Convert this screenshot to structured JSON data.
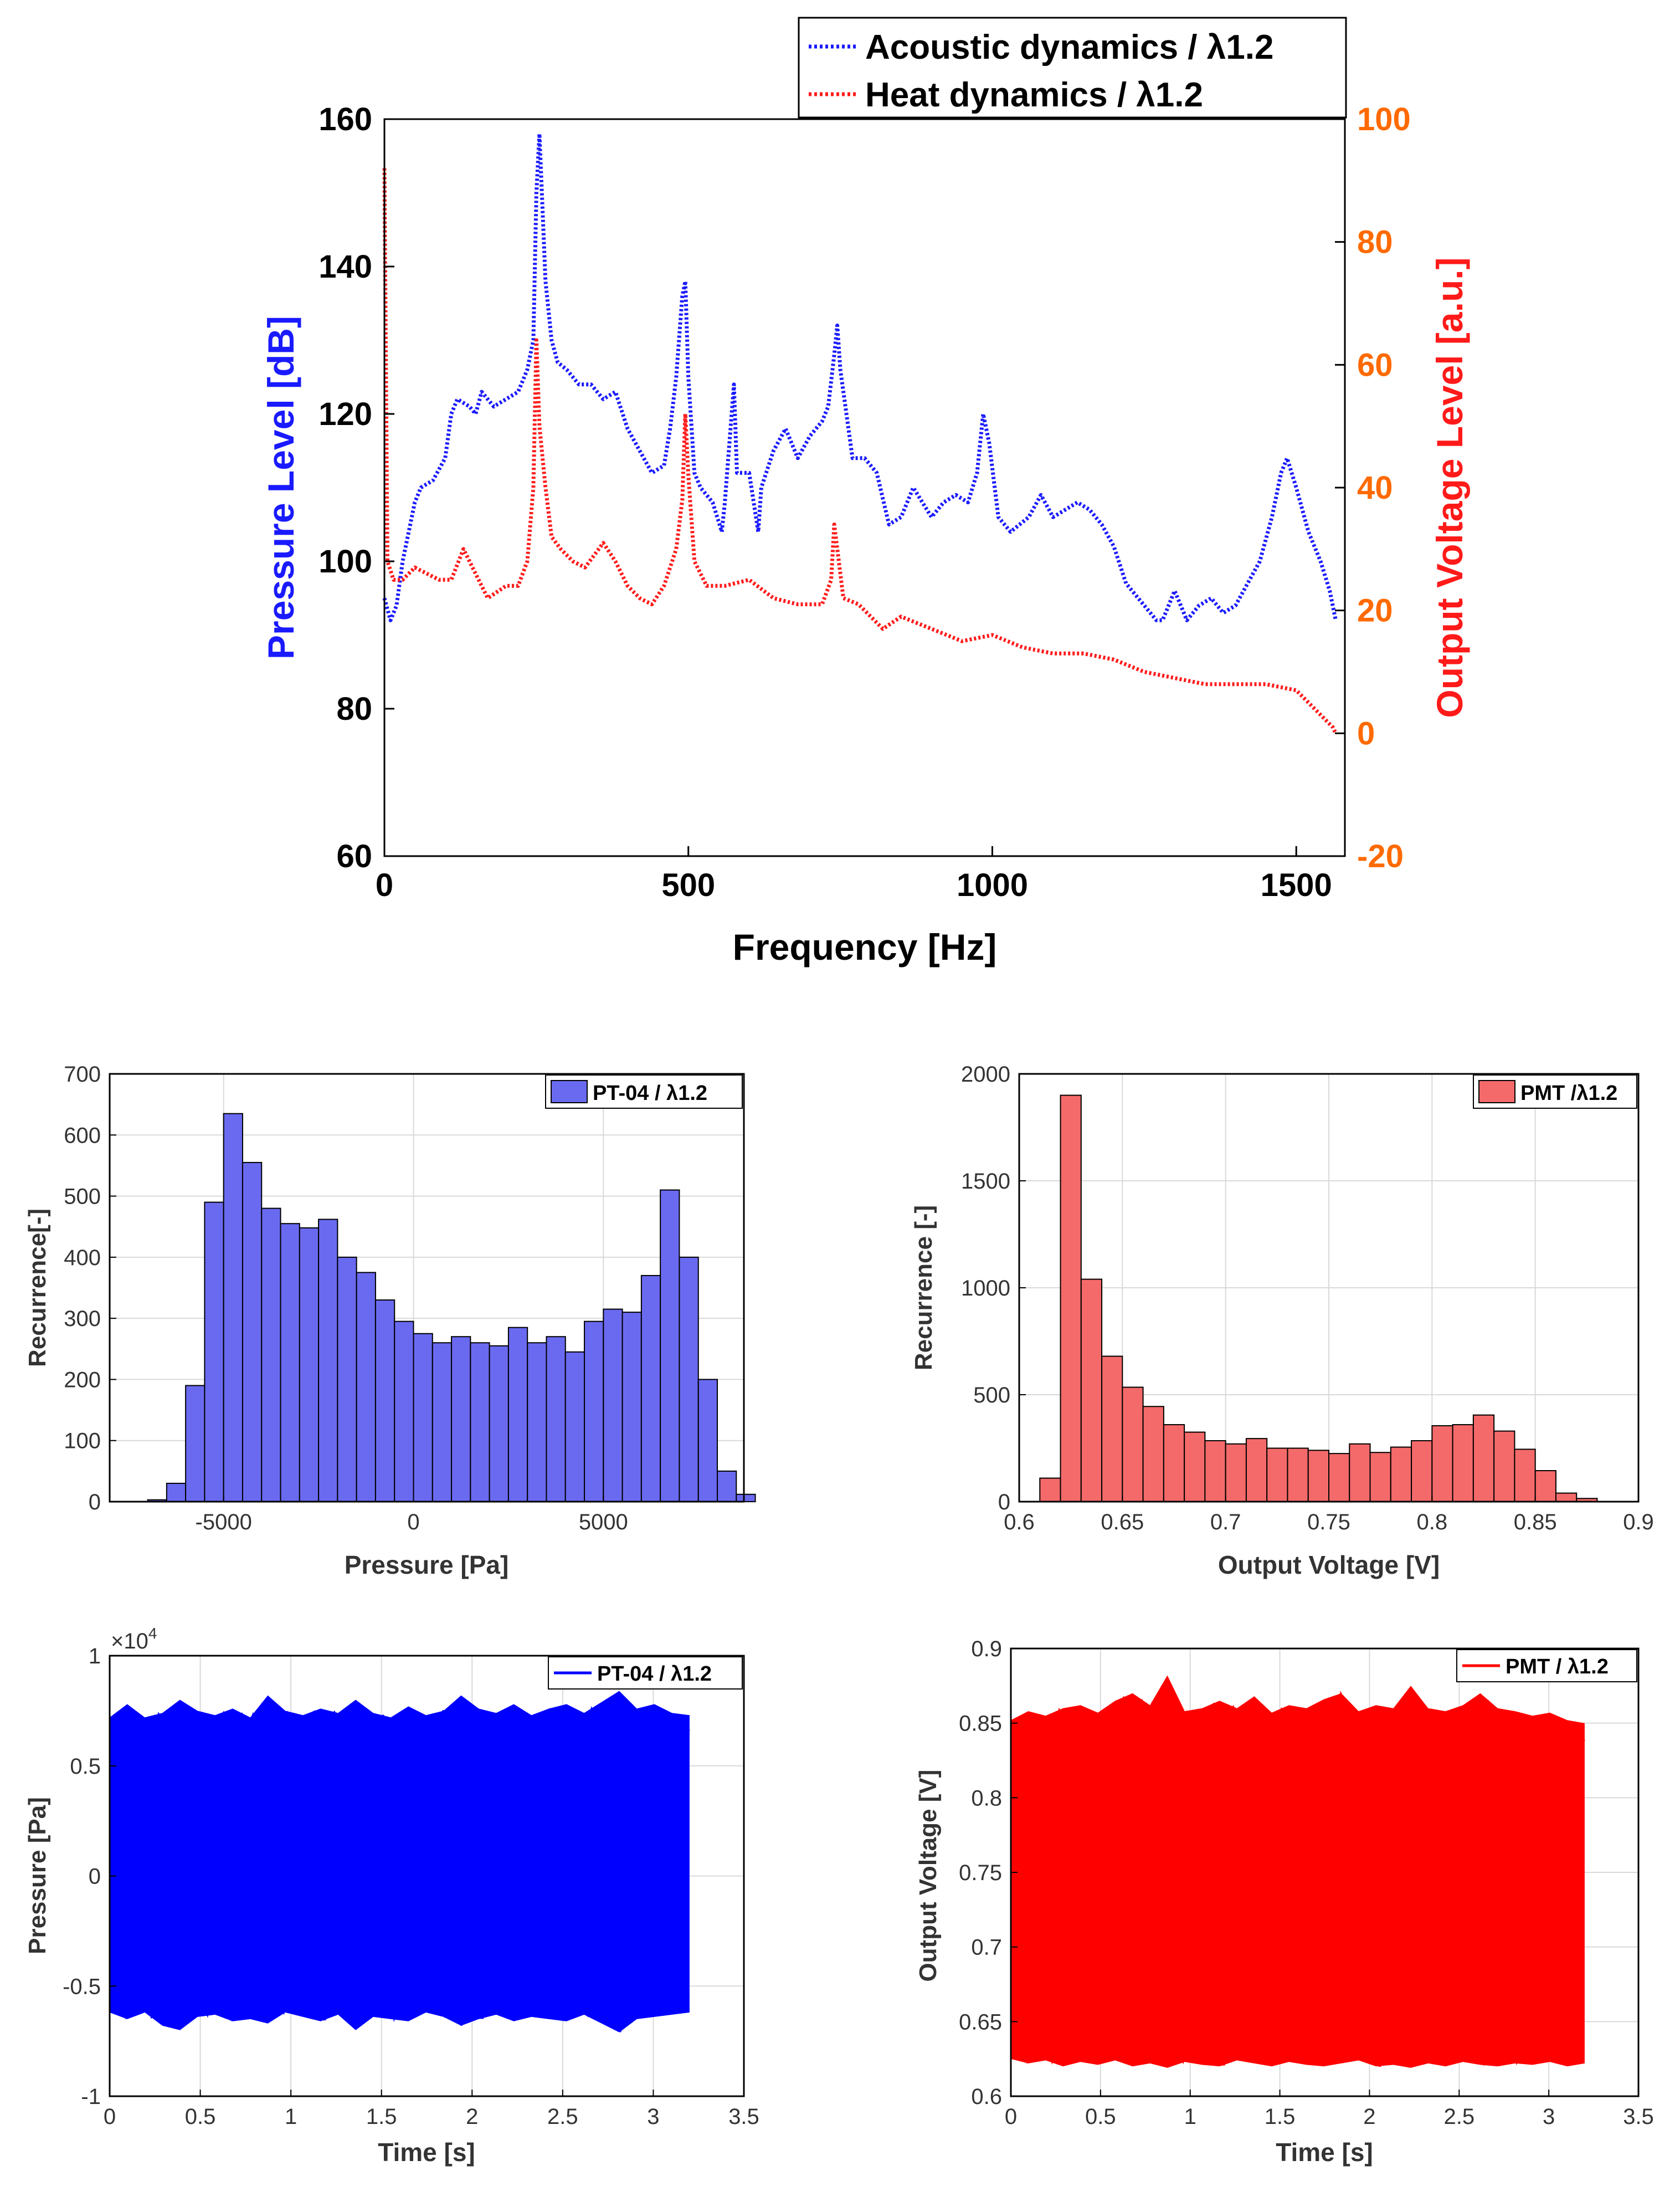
{
  "colors": {
    "acoustic": "#1a1aff",
    "heat": "#ff1a1a",
    "left_axis_label": "#1a1aff",
    "right_axis_ticks": "#ff6a00",
    "right_axis_label": "#ff1a1a",
    "hist_blue": "#6a6af0",
    "hist_red": "#f46a6a",
    "ts_blue": "#0000ff",
    "ts_red": "#ff0000",
    "grid": "#d9d9d9"
  },
  "chart_data": [
    {
      "type": "line",
      "id": "spectrum",
      "xlabel": "Frequency [Hz]",
      "ylabel": "Pressure Level [dB]",
      "y2label": "Output Voltage Level [a.u.]",
      "xlim": [
        0,
        1580
      ],
      "ylim": [
        60,
        160
      ],
      "y2lim": [
        -20,
        100
      ],
      "xticks": [
        0,
        500,
        1000,
        1500
      ],
      "yticks": [
        60,
        80,
        100,
        120,
        140,
        160
      ],
      "y2ticks": [
        -20,
        0,
        20,
        40,
        60,
        80,
        100
      ],
      "legend_position": "top-right (outside)",
      "series": [
        {
          "name": "Acoustic dynamics / λ1.2",
          "axis": "left",
          "style": "dotted",
          "x": [
            0,
            10,
            20,
            30,
            50,
            60,
            80,
            100,
            110,
            120,
            140,
            150,
            160,
            180,
            200,
            220,
            235,
            245,
            250,
            255,
            265,
            275,
            285,
            300,
            320,
            340,
            360,
            380,
            400,
            420,
            440,
            460,
            470,
            480,
            490,
            495,
            500,
            510,
            520,
            540,
            555,
            560,
            575,
            580,
            600,
            615,
            620,
            640,
            660,
            680,
            700,
            720,
            730,
            740,
            745,
            750,
            770,
            790,
            810,
            830,
            850,
            870,
            900,
            920,
            940,
            960,
            975,
            985,
            995,
            1010,
            1030,
            1060,
            1080,
            1100,
            1120,
            1140,
            1160,
            1180,
            1200,
            1220,
            1240,
            1260,
            1270,
            1280,
            1300,
            1320,
            1340,
            1360,
            1380,
            1400,
            1420,
            1440,
            1460,
            1475,
            1485,
            1500,
            1520,
            1540,
            1555,
            1565
          ],
          "values": [
            95,
            92,
            94,
            100,
            108,
            110,
            111,
            114,
            120,
            122,
            121,
            120,
            123,
            121,
            122,
            123,
            126,
            130,
            150,
            158,
            138,
            130,
            127,
            126,
            124,
            124,
            122,
            123,
            118,
            115,
            112,
            113,
            118,
            125,
            136,
            138,
            125,
            112,
            110,
            108,
            104,
            108,
            124,
            112,
            112,
            104,
            110,
            115,
            118,
            114,
            117,
            119,
            121,
            128,
            132,
            126,
            114,
            114,
            112,
            105,
            106,
            110,
            106,
            108,
            109,
            108,
            112,
            120,
            116,
            106,
            104,
            106,
            109,
            106,
            107,
            108,
            107,
            105,
            102,
            97,
            95,
            93,
            92,
            92,
            96,
            92,
            94,
            95,
            93,
            94,
            97,
            100,
            106,
            112,
            114,
            110,
            104,
            100,
            96,
            92
          ]
        },
        {
          "name": "Heat dynamics / λ1.2",
          "axis": "right",
          "style": "dotted",
          "x": [
            0,
            5,
            15,
            30,
            50,
            70,
            90,
            110,
            130,
            150,
            170,
            200,
            220,
            235,
            245,
            250,
            255,
            265,
            275,
            290,
            310,
            330,
            360,
            380,
            400,
            420,
            440,
            460,
            480,
            490,
            495,
            500,
            510,
            530,
            560,
            600,
            640,
            680,
            720,
            735,
            740,
            745,
            755,
            780,
            800,
            820,
            850,
            900,
            950,
            1000,
            1050,
            1100,
            1150,
            1200,
            1250,
            1300,
            1350,
            1400,
            1450,
            1500,
            1520,
            1540,
            1560,
            1565
          ],
          "values": [
            92,
            28,
            25,
            25,
            27,
            26,
            25,
            25,
            30,
            26,
            22,
            24,
            24,
            28,
            40,
            64,
            50,
            40,
            32,
            30,
            28,
            27,
            31,
            28,
            24,
            22,
            21,
            24,
            30,
            38,
            52,
            42,
            28,
            24,
            24,
            25,
            22,
            21,
            21,
            25,
            34,
            30,
            22,
            21,
            19,
            17,
            19,
            17,
            15,
            16,
            14,
            13,
            13,
            12,
            10,
            9,
            8,
            8,
            8,
            7,
            5,
            3,
            1,
            0
          ]
        }
      ]
    },
    {
      "type": "bar",
      "id": "hist-pressure",
      "xlabel": "Pressure [Pa]",
      "ylabel": "Recurrence[-]",
      "xlim": [
        -8000,
        8700
      ],
      "ylim": [
        0,
        700
      ],
      "xticks": [
        -5000,
        0,
        5000
      ],
      "yticks": [
        0,
        100,
        200,
        300,
        400,
        500,
        600,
        700
      ],
      "legend": "PT-04 / λ1.2",
      "legend_position": "top-right",
      "bin_width": 500,
      "bin_start": -7000,
      "values": [
        3,
        30,
        190,
        490,
        635,
        555,
        480,
        455,
        448,
        462,
        400,
        375,
        330,
        295,
        275,
        260,
        270,
        260,
        255,
        285,
        260,
        270,
        245,
        295,
        315,
        310,
        370,
        510,
        400,
        200,
        50,
        12
      ]
    },
    {
      "type": "bar",
      "id": "hist-voltage",
      "xlabel": "Output Voltage [V]",
      "ylabel": "Recurrence [-]",
      "xlim": [
        0.6,
        0.9
      ],
      "ylim": [
        0,
        2000
      ],
      "xticks": [
        0.6,
        0.65,
        0.7,
        0.75,
        0.8,
        0.85,
        0.9
      ],
      "yticks": [
        0,
        500,
        1000,
        1500,
        2000
      ],
      "legend": "PMT /λ1.2",
      "legend_position": "top-right",
      "bin_width": 0.01,
      "bin_start": 0.61,
      "values": [
        110,
        1900,
        1040,
        680,
        535,
        445,
        360,
        325,
        285,
        270,
        295,
        250,
        250,
        240,
        225,
        270,
        230,
        255,
        285,
        355,
        360,
        405,
        330,
        245,
        145,
        40,
        15
      ]
    },
    {
      "type": "area",
      "id": "ts-pressure",
      "xlabel": "Time [s]",
      "ylabel": "Pressure [Pa]",
      "multiplier_label": "×10",
      "multiplier_exp": "4",
      "xlim": [
        0,
        3.5
      ],
      "ylim": [
        -1,
        1
      ],
      "xticks": [
        0,
        0.5,
        1,
        1.5,
        2,
        2.5,
        3,
        3.5
      ],
      "yticks": [
        -1,
        -0.5,
        0,
        0.5,
        1
      ],
      "legend": "PT-04 / λ1.2",
      "legend_position": "top-right",
      "t_end": 3.2,
      "upper_envelope": [
        0.72,
        0.78,
        0.72,
        0.74,
        0.8,
        0.75,
        0.73,
        0.76,
        0.72,
        0.82,
        0.75,
        0.73,
        0.76,
        0.74,
        0.8,
        0.74,
        0.72,
        0.77,
        0.73,
        0.75,
        0.82,
        0.76,
        0.74,
        0.78,
        0.73,
        0.76,
        0.78,
        0.74,
        0.79,
        0.84,
        0.76,
        0.78,
        0.74,
        0.73
      ],
      "lower_envelope": [
        -0.62,
        -0.65,
        -0.62,
        -0.68,
        -0.7,
        -0.64,
        -0.63,
        -0.66,
        -0.65,
        -0.67,
        -0.62,
        -0.64,
        -0.66,
        -0.63,
        -0.7,
        -0.64,
        -0.65,
        -0.66,
        -0.62,
        -0.64,
        -0.68,
        -0.65,
        -0.63,
        -0.66,
        -0.64,
        -0.65,
        -0.66,
        -0.63,
        -0.67,
        -0.71,
        -0.65,
        -0.64,
        -0.63,
        -0.62
      ]
    },
    {
      "type": "area",
      "id": "ts-voltage",
      "xlabel": "Time [s]",
      "ylabel": "Output Voltage [V]",
      "xlim": [
        0,
        3.5
      ],
      "ylim": [
        0.6,
        0.9
      ],
      "xticks": [
        0,
        0.5,
        1,
        1.5,
        2,
        2.5,
        3,
        3.5
      ],
      "yticks": [
        0.6,
        0.65,
        0.7,
        0.75,
        0.8,
        0.85,
        0.9
      ],
      "legend": "PMT / λ1.2",
      "legend_position": "top-right",
      "t_end": 3.2,
      "upper_envelope": [
        0.852,
        0.858,
        0.855,
        0.86,
        0.862,
        0.857,
        0.865,
        0.87,
        0.862,
        0.882,
        0.858,
        0.86,
        0.865,
        0.86,
        0.868,
        0.857,
        0.862,
        0.86,
        0.866,
        0.87,
        0.858,
        0.862,
        0.86,
        0.875,
        0.86,
        0.858,
        0.862,
        0.87,
        0.86,
        0.858,
        0.855,
        0.857,
        0.852,
        0.85
      ],
      "lower_envelope": [
        0.625,
        0.622,
        0.624,
        0.62,
        0.623,
        0.621,
        0.624,
        0.62,
        0.622,
        0.619,
        0.623,
        0.621,
        0.62,
        0.624,
        0.622,
        0.62,
        0.623,
        0.621,
        0.62,
        0.622,
        0.624,
        0.62,
        0.621,
        0.619,
        0.622,
        0.62,
        0.623,
        0.621,
        0.62,
        0.622,
        0.621,
        0.623,
        0.62,
        0.622
      ]
    }
  ]
}
